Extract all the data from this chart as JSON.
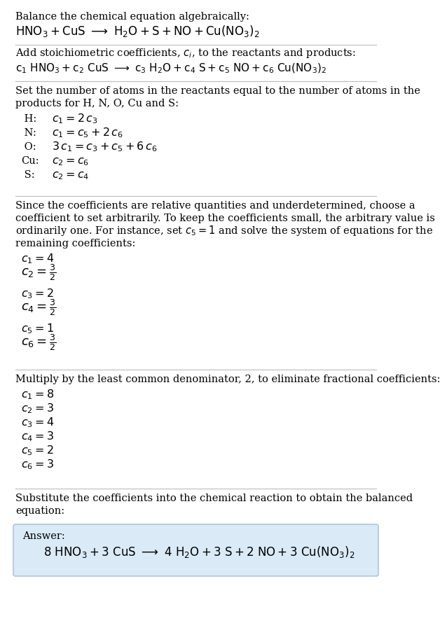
{
  "bg_color": "#ffffff",
  "text_color": "#000000",
  "fs": 10.5,
  "fs_math": 11.5,
  "section1_title": "Balance the chemical equation algebraically:",
  "section1_formula": "$\\mathrm{HNO_3 + CuS\\ \\longrightarrow\\ H_2O + S + NO + Cu(NO_3)_2}$",
  "section2_title": "Add stoichiometric coefficients, $c_i$, to the reactants and products:",
  "section2_formula": "$\\mathrm{c_1\\ HNO_3 + c_2\\ CuS\\ \\longrightarrow\\ c_3\\ H_2O + c_4\\ S + c_5\\ NO + c_6\\ Cu(NO_3)_2}$",
  "section3_title1": "Set the number of atoms in the reactants equal to the number of atoms in the",
  "section3_title2": "products for H, N, O, Cu and S:",
  "atom_labels": [
    " H:",
    " N:",
    " O:",
    "Cu:",
    " S:"
  ],
  "atom_equations": [
    "$c_1 = 2\\,c_3$",
    "$c_1 = c_5 + 2\\,c_6$",
    "$3\\,c_1 = c_3 + c_5 + 6\\,c_6$",
    "$c_2 = c_6$",
    "$c_2 = c_4$"
  ],
  "section4_line1": "Since the coefficients are relative quantities and underdetermined, choose a",
  "section4_line2": "coefficient to set arbitrarily. To keep the coefficients small, the arbitrary value is",
  "section4_line3": "ordinarily one. For instance, set $c_5 = 1$ and solve the system of equations for the",
  "section4_line4": "remaining coefficients:",
  "coeffs1": [
    "$c_1 = 4$",
    "$c_2 = \\frac{3}{2}$",
    "$c_3 = 2$",
    "$c_4 = \\frac{3}{2}$",
    "$c_5 = 1$",
    "$c_6 = \\frac{3}{2}$"
  ],
  "section5_title": "Multiply by the least common denominator, 2, to eliminate fractional coefficients:",
  "coeffs2": [
    "$c_1 = 8$",
    "$c_2 = 3$",
    "$c_3 = 4$",
    "$c_4 = 3$",
    "$c_5 = 2$",
    "$c_6 = 3$"
  ],
  "section6_line1": "Substitute the coefficients into the chemical reaction to obtain the balanced",
  "section6_line2": "equation:",
  "answer_label": "Answer:",
  "answer_eq": "$\\mathrm{8\\ HNO_3 + 3\\ CuS\\ \\longrightarrow\\ 4\\ H_2O + 3\\ S + 2\\ NO + 3\\ Cu(NO_3)_2}$",
  "box_color": "#daeaf7",
  "box_edge": "#aac8e0",
  "line_color": "#bbbbbb"
}
